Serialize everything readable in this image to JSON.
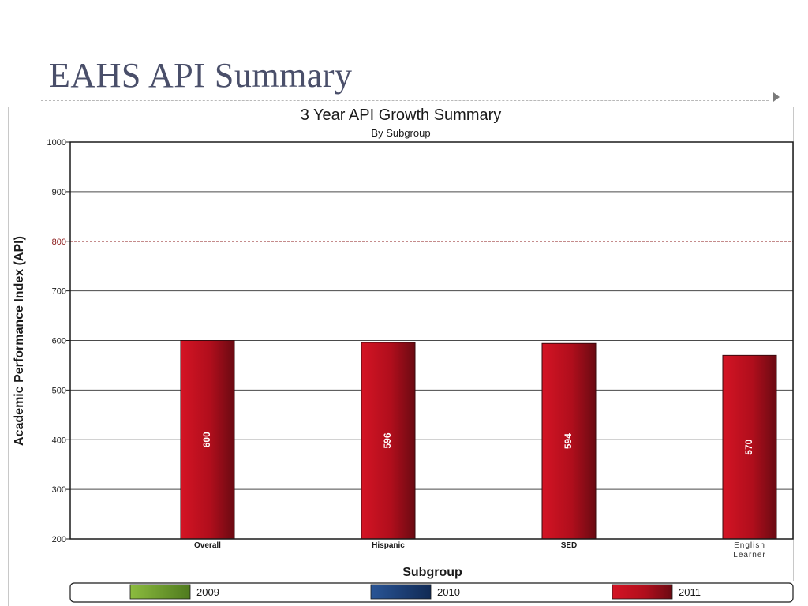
{
  "slide": {
    "title": "EAHS API Summary"
  },
  "chart_data": {
    "type": "bar",
    "title": "3 Year API Growth Summary",
    "subtitle": "By Subgroup",
    "xlabel": "Subgroup",
    "ylabel": "Academic Performance Index (API)",
    "ylim": [
      200,
      1000
    ],
    "yticks": [
      200,
      300,
      400,
      500,
      600,
      700,
      800,
      900,
      1000
    ],
    "grid": true,
    "categories": [
      "Overall",
      "Hispanic",
      "SED",
      "English Learner"
    ],
    "series": [
      {
        "name": "2009",
        "values": [
          null,
          null,
          null,
          null
        ],
        "color": "#76a332"
      },
      {
        "name": "2010",
        "values": [
          null,
          null,
          null,
          null
        ],
        "color": "#1f3f7a"
      },
      {
        "name": "2011",
        "values": [
          600,
          596,
          594,
          570
        ],
        "color": "#c4101c"
      }
    ],
    "data_labels": [
      "600",
      "596",
      "594",
      "570"
    ],
    "reference_line": {
      "value": 800,
      "color": "#8b1a1a",
      "style": "dashed"
    },
    "legend_position": "bottom"
  }
}
